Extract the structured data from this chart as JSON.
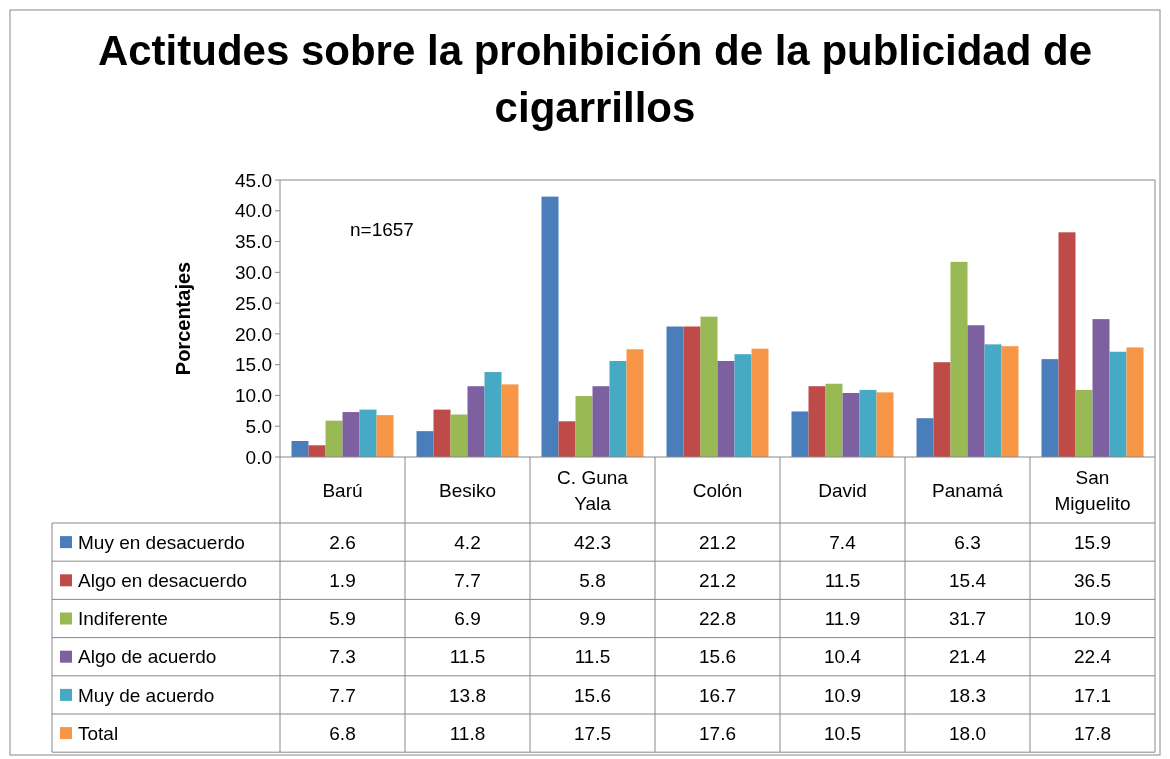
{
  "chart_data": {
    "type": "bar",
    "title": "Actitudes sobre la prohibición de la publicidad de cigarrillos",
    "ylabel": "Porcentajes",
    "annotations": [
      "n=1657"
    ],
    "categories": [
      "Barú",
      "Besiko",
      "C. Guna Yala",
      "Colón",
      "David",
      "Panamá",
      "San Miguelito"
    ],
    "ylim": [
      0,
      45
    ],
    "yticks": [
      {
        "value": 0,
        "label": "0.0"
      },
      {
        "value": 5,
        "label": "5.0"
      },
      {
        "value": 10,
        "label": "10.0"
      },
      {
        "value": 15,
        "label": "15.0"
      },
      {
        "value": 20,
        "label": "20.0"
      },
      {
        "value": 25,
        "label": "25.0"
      },
      {
        "value": 30,
        "label": "30.0"
      },
      {
        "value": 35,
        "label": "35.0"
      },
      {
        "value": 40,
        "label": "40.0"
      },
      {
        "value": 45,
        "label": "45.0"
      }
    ],
    "legend": "bottom",
    "series": [
      {
        "name": "Muy en desacuerdo",
        "color": "#4a7ebb",
        "values": [
          2.6,
          4.2,
          42.3,
          21.2,
          7.4,
          6.3,
          15.9
        ],
        "value_labels": [
          "2.6",
          "4.2",
          "42.3",
          "21.2",
          "7.4",
          "6.3",
          "15.9"
        ]
      },
      {
        "name": "Algo en desacuerdo",
        "color": "#be4b48",
        "values": [
          1.9,
          7.7,
          5.8,
          21.2,
          11.5,
          15.4,
          36.5
        ],
        "value_labels": [
          "1.9",
          "7.7",
          "5.8",
          "21.2",
          "11.5",
          "15.4",
          "36.5"
        ]
      },
      {
        "name": "Indiferente",
        "color": "#98b954",
        "values": [
          5.9,
          6.9,
          9.9,
          22.8,
          11.9,
          31.7,
          10.9
        ],
        "value_labels": [
          "5.9",
          "6.9",
          "9.9",
          "22.8",
          "11.9",
          "31.7",
          "10.9"
        ]
      },
      {
        "name": "Algo de acuerdo",
        "color": "#7d60a0",
        "values": [
          7.3,
          11.5,
          11.5,
          15.6,
          10.4,
          21.4,
          22.4
        ],
        "value_labels": [
          "7.3",
          "11.5",
          "11.5",
          "15.6",
          "10.4",
          "21.4",
          "22.4"
        ]
      },
      {
        "name": "Muy de acuerdo",
        "color": "#46aac5",
        "values": [
          7.7,
          13.8,
          15.6,
          16.7,
          10.9,
          18.3,
          17.1
        ],
        "value_labels": [
          "7.7",
          "13.8",
          "15.6",
          "16.7",
          "10.9",
          "18.3",
          "17.1"
        ]
      },
      {
        "name": "Total",
        "color": "#f79646",
        "values": [
          6.8,
          11.8,
          17.5,
          17.6,
          10.5,
          18.0,
          17.8
        ],
        "value_labels": [
          "6.8",
          "11.8",
          "17.5",
          "17.6",
          "10.5",
          "18.0",
          "17.8"
        ]
      }
    ]
  }
}
